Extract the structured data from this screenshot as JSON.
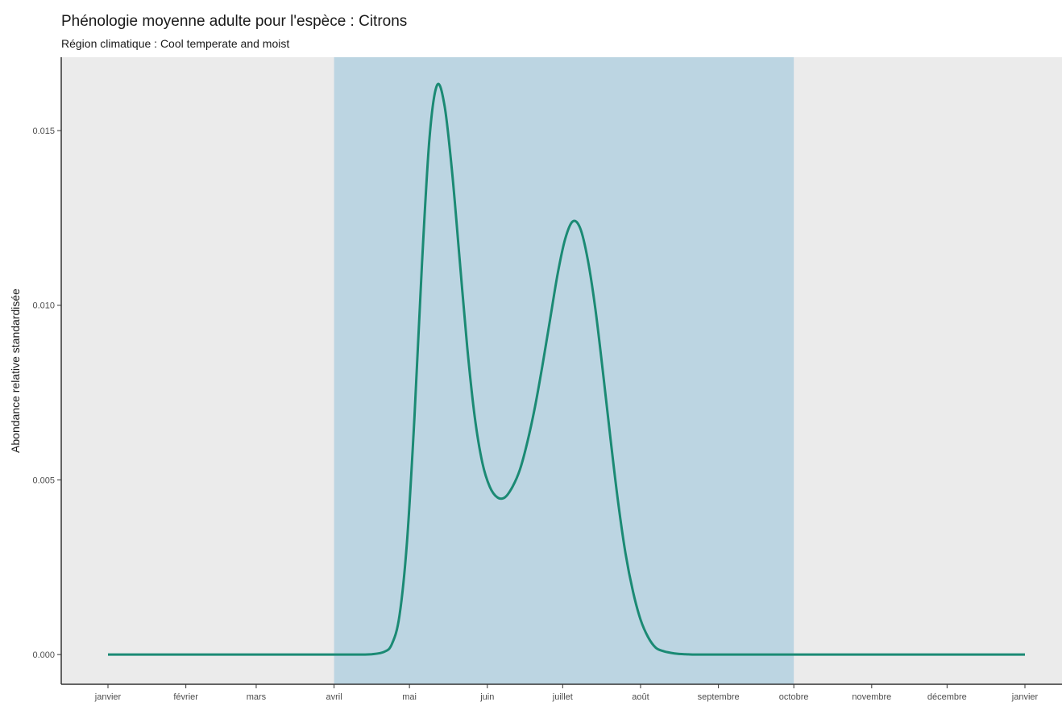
{
  "chart_data": {
    "type": "line",
    "title": "Phénologie moyenne adulte pour l'espèce : Citrons",
    "subtitle": "Région climatique : Cool temperate and moist",
    "xlabel": "",
    "ylabel": "Abondance relative standardisée",
    "ylim": [
      -0.00085,
      0.0171
    ],
    "xlim": [
      0,
      365
    ],
    "x_ticks": [
      {
        "x": 0,
        "label": "janvier"
      },
      {
        "x": 31,
        "label": "février"
      },
      {
        "x": 59,
        "label": "mars"
      },
      {
        "x": 90,
        "label": "avril"
      },
      {
        "x": 120,
        "label": "mai"
      },
      {
        "x": 151,
        "label": "juin"
      },
      {
        "x": 181,
        "label": "juillet"
      },
      {
        "x": 212,
        "label": "août"
      },
      {
        "x": 243,
        "label": "septembre"
      },
      {
        "x": 273,
        "label": "octobre"
      },
      {
        "x": 304,
        "label": "novembre"
      },
      {
        "x": 334,
        "label": "décembre"
      },
      {
        "x": 365,
        "label": "janvier"
      }
    ],
    "y_ticks": [
      {
        "y": 0.0,
        "label": "0.000"
      },
      {
        "y": 0.005,
        "label": "0.005"
      },
      {
        "y": 0.01,
        "label": "0.010"
      },
      {
        "y": 0.015,
        "label": "0.015"
      }
    ],
    "highlight_band": {
      "x_start": 90,
      "x_end": 273,
      "color": "#bcd5e2"
    },
    "series": [
      {
        "color": "#1b8a74",
        "x": [
          0,
          60,
          90,
          100,
          105,
          110,
          113,
          116,
          119,
          122,
          125,
          128,
          131,
          134,
          137,
          140,
          143,
          146,
          149,
          152,
          155,
          158,
          161,
          164,
          167,
          170,
          173,
          176,
          179,
          182,
          185,
          188,
          191,
          194,
          197,
          200,
          203,
          206,
          209,
          212,
          215,
          218,
          221,
          224,
          227,
          230,
          233,
          236,
          239,
          242,
          245,
          250,
          255,
          262,
          270,
          300,
          330,
          365
        ],
        "y": [
          0,
          0,
          0,
          0,
          1e-05,
          8e-05,
          0.0003,
          0.0011,
          0.0032,
          0.0068,
          0.0112,
          0.0148,
          0.0163,
          0.0157,
          0.0138,
          0.0113,
          0.0088,
          0.0068,
          0.0055,
          0.0048,
          0.0045,
          0.0045,
          0.0048,
          0.0053,
          0.0061,
          0.0071,
          0.0083,
          0.0096,
          0.0109,
          0.0119,
          0.0124,
          0.0122,
          0.0113,
          0.0099,
          0.0081,
          0.0062,
          0.0044,
          0.0029,
          0.0018,
          0.001,
          0.0005,
          0.0002,
          0.0001,
          5e-05,
          2e-05,
          1e-05,
          0,
          0,
          0,
          0,
          0,
          0,
          0,
          0,
          0,
          0,
          0,
          0
        ]
      }
    ],
    "background": "#ebebeb",
    "grid": false,
    "legend": "none"
  }
}
